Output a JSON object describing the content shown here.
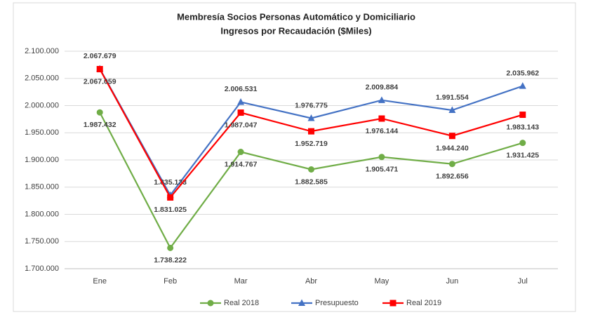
{
  "chart_data": {
    "type": "line",
    "title": "Membresía Socios Personas Automático y Domiciliario",
    "subtitle": "Ingresos por Recaudación ($Miles)",
    "categories": [
      "Ene",
      "Feb",
      "Mar",
      "Abr",
      "May",
      "Jun",
      "Jul"
    ],
    "series": [
      {
        "name": "Real 2018",
        "color": "#70ad47",
        "marker": "circle",
        "values": [
          1987432,
          1738222,
          1914767,
          1882585,
          1905471,
          1892656,
          1931425
        ],
        "value_labels": [
          "1.987.432",
          "1.738.222",
          "1.914.767",
          "1.882.585",
          "1.905.471",
          "1.892.656",
          "1.931.425"
        ]
      },
      {
        "name": "Presupuesto",
        "color": "#4472c4",
        "marker": "triangle",
        "values": [
          2067679,
          1835133,
          2006531,
          1976775,
          2009884,
          1991554,
          2035962
        ],
        "value_labels": [
          "2.067.679",
          "1.835.133",
          "2.006.531",
          "1.976.775",
          "2.009.884",
          "1.991.554",
          "2.035.962"
        ]
      },
      {
        "name": "Real 2019",
        "color": "#ff0000",
        "marker": "square",
        "values": [
          2067059,
          1831025,
          1987047,
          1952719,
          1976144,
          1944240,
          1983143
        ],
        "value_labels": [
          "2.067.059",
          "1.831.025",
          "1.987.047",
          "1.952.719",
          "1.976.144",
          "1.944.240",
          "1.983.143"
        ]
      }
    ],
    "ylim": [
      1700000,
      2100000
    ],
    "yticks": [
      {
        "value": 1700000,
        "label": "1.700.000"
      },
      {
        "value": 1750000,
        "label": "1.750.000"
      },
      {
        "value": 1800000,
        "label": "1.800.000"
      },
      {
        "value": 1850000,
        "label": "1.850.000"
      },
      {
        "value": 1900000,
        "label": "1.900.000"
      },
      {
        "value": 1950000,
        "label": "1.950.000"
      },
      {
        "value": 2000000,
        "label": "2.000.000"
      },
      {
        "value": 2050000,
        "label": "2.050.000"
      },
      {
        "value": 2100000,
        "label": "2.100.000"
      }
    ],
    "grid": true,
    "legend": "bottom"
  }
}
